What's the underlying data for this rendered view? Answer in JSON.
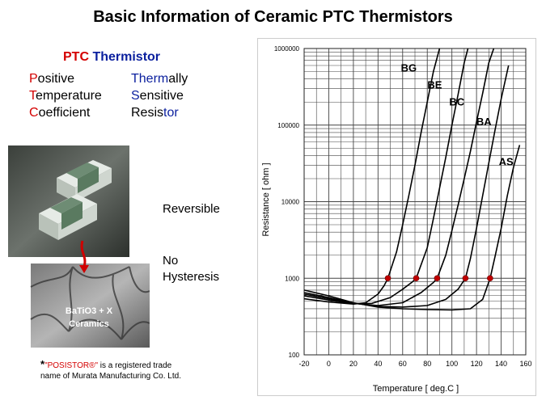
{
  "slide": {
    "title": "Basic Information of Ceramic PTC Thermistors"
  },
  "ptc": {
    "title_left": "PTC",
    "title_right": "Thermistor",
    "rows": [
      {
        "l_init": "P",
        "l_rest": "ositive",
        "r_init": "Therm",
        "r_rest": "ally"
      },
      {
        "l_init": "T",
        "l_rest": "emperature",
        "r_init": "S",
        "r_rest": "ensitive"
      },
      {
        "l_init": "C",
        "l_rest": "oefficient",
        "r_init": "Resis",
        "r_rest": "tor"
      }
    ]
  },
  "image": {
    "label_line1": "BaTiO3 + X",
    "label_line2": "Ceramics"
  },
  "properties": {
    "reversible": "Reversible",
    "no_hyst_line1": "No",
    "no_hyst_line2": "Hysteresis"
  },
  "footnote": {
    "star": "*",
    "brand": "\"POSISTOR®\"",
    "rest1": " is a registered trade",
    "line2": "name of Murata Manufacturing Co. Ltd."
  },
  "chart_data": {
    "type": "line",
    "xlabel": "Temperature [ deg.C ]",
    "ylabel": "Resistance [ ohm ]",
    "xlim": [
      -20,
      160
    ],
    "ylim": [
      100,
      1000000
    ],
    "yscale": "log",
    "x_ticks": [
      -20,
      0,
      20,
      40,
      60,
      80,
      100,
      120,
      140,
      160
    ],
    "y_ticks": [
      {
        "value": 100,
        "label": "100"
      },
      {
        "value": 1000,
        "label": "1000"
      },
      {
        "value": 10000,
        "label": "10000"
      },
      {
        "value": 100000,
        "label": "100000"
      },
      {
        "value": 1000000,
        "label": "1000000"
      }
    ],
    "grid": true,
    "series": [
      {
        "name": "BG",
        "points": [
          [
            -20,
            540
          ],
          [
            0,
            490
          ],
          [
            20,
            460
          ],
          [
            30,
            480
          ],
          [
            40,
            620
          ],
          [
            45,
            800
          ],
          [
            48,
            1000
          ],
          [
            55,
            2200
          ],
          [
            60,
            5000
          ],
          [
            65,
            12000
          ],
          [
            70,
            30000
          ],
          [
            75,
            80000
          ],
          [
            80,
            200000
          ],
          [
            85,
            500000
          ],
          [
            90,
            1000000
          ]
        ],
        "marker": [
          48,
          1000
        ],
        "label_at": [
          65,
          500000
        ]
      },
      {
        "name": "BE",
        "points": [
          [
            -20,
            590
          ],
          [
            0,
            520
          ],
          [
            20,
            465
          ],
          [
            35,
            470
          ],
          [
            50,
            560
          ],
          [
            60,
            720
          ],
          [
            68,
            900
          ],
          [
            71,
            1000
          ],
          [
            80,
            2500
          ],
          [
            85,
            6000
          ],
          [
            90,
            15000
          ],
          [
            95,
            38000
          ],
          [
            100,
            100000
          ],
          [
            105,
            250000
          ],
          [
            110,
            650000
          ],
          [
            113,
            1000000
          ]
        ],
        "marker": [
          71,
          1000
        ],
        "label_at": [
          86,
          300000
        ]
      },
      {
        "name": "BC",
        "points": [
          [
            -20,
            620
          ],
          [
            0,
            540
          ],
          [
            20,
            470
          ],
          [
            40,
            440
          ],
          [
            60,
            480
          ],
          [
            75,
            650
          ],
          [
            85,
            880
          ],
          [
            88,
            1000
          ],
          [
            95,
            2000
          ],
          [
            100,
            4200
          ],
          [
            105,
            9000
          ],
          [
            110,
            20000
          ],
          [
            115,
            45000
          ],
          [
            120,
            110000
          ],
          [
            125,
            260000
          ],
          [
            130,
            650000
          ],
          [
            134,
            1000000
          ]
        ],
        "marker": [
          88,
          1000
        ],
        "label_at": [
          104,
          180000
        ]
      },
      {
        "name": "BA",
        "points": [
          [
            -20,
            650
          ],
          [
            0,
            560
          ],
          [
            20,
            475
          ],
          [
            40,
            430
          ],
          [
            60,
            420
          ],
          [
            80,
            440
          ],
          [
            95,
            530
          ],
          [
            105,
            720
          ],
          [
            111,
            1000
          ],
          [
            115,
            1800
          ],
          [
            120,
            4500
          ],
          [
            125,
            12000
          ],
          [
            130,
            32000
          ],
          [
            135,
            85000
          ],
          [
            140,
            220000
          ],
          [
            146,
            600000
          ]
        ],
        "marker": [
          111,
          1000
        ],
        "label_at": [
          126,
          100000
        ]
      },
      {
        "name": "AS",
        "points": [
          [
            -20,
            700
          ],
          [
            0,
            590
          ],
          [
            20,
            480
          ],
          [
            40,
            420
          ],
          [
            60,
            400
          ],
          [
            80,
            390
          ],
          [
            100,
            385
          ],
          [
            115,
            400
          ],
          [
            125,
            530
          ],
          [
            131,
            1000
          ],
          [
            135,
            1900
          ],
          [
            140,
            4500
          ],
          [
            145,
            12000
          ],
          [
            150,
            28000
          ],
          [
            155,
            55000
          ]
        ],
        "marker": [
          131,
          1000
        ],
        "label_at": [
          144,
          30000
        ]
      }
    ]
  },
  "colors": {
    "marker": "#c00000",
    "brand_red": "#d40000",
    "brand_blue": "#0a1f9e"
  }
}
